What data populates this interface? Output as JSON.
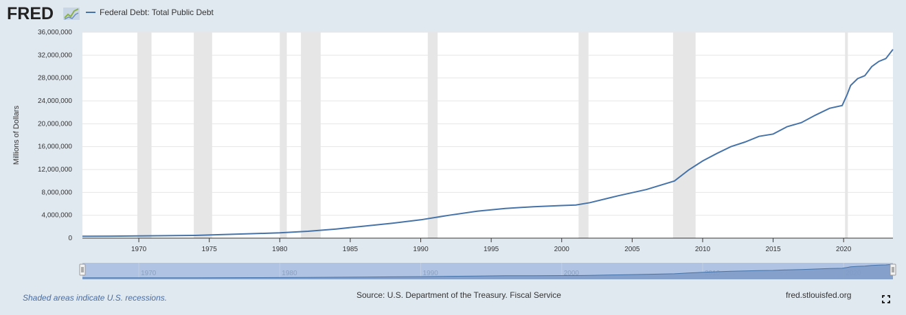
{
  "logo": {
    "text": "FRED"
  },
  "legend": {
    "label": "Federal Debt: Total Public Debt",
    "color": "#4572a7"
  },
  "footer": {
    "note": "Shaded areas indicate U.S. recessions.",
    "source": "Source: U.S. Department of the Treasury. Fiscal Service",
    "url": "fred.stlouisfed.org"
  },
  "icons": {
    "fullscreen": "fullscreen-icon"
  },
  "colors": {
    "background": "#e1e9f0",
    "plot": "#ffffff",
    "recession": "#e6e6e6",
    "line": "#4572a7",
    "navigator": "#a8bde0"
  },
  "chart_data": {
    "type": "line",
    "title": "",
    "xlabel": "",
    "ylabel": "Millions of Dollars",
    "xlim": [
      1966,
      2023.5
    ],
    "ylim": [
      0,
      36000000
    ],
    "grid": true,
    "legend_position": "top-left",
    "y_ticks": [
      "0",
      "4,000,000",
      "8,000,000",
      "12,000,000",
      "16,000,000",
      "20,000,000",
      "24,000,000",
      "28,000,000",
      "32,000,000",
      "36,000,000"
    ],
    "y_tick_values": [
      0,
      4000000,
      8000000,
      12000000,
      16000000,
      20000000,
      24000000,
      28000000,
      32000000,
      36000000
    ],
    "x_ticks": [
      "1970",
      "1975",
      "1980",
      "1985",
      "1990",
      "1995",
      "2000",
      "2005",
      "2010",
      "2015",
      "2020"
    ],
    "x_tick_values": [
      1970,
      1975,
      1980,
      1985,
      1990,
      1995,
      2000,
      2005,
      2010,
      2015,
      2020
    ],
    "navigator_ticks": [
      "1970",
      "1980",
      "1990",
      "2000",
      "2010",
      "2020"
    ],
    "navigator_tick_values": [
      1970,
      1980,
      1990,
      2000,
      2010,
      2020
    ],
    "recessions": [
      [
        1969.9,
        1970.9
      ],
      [
        1973.9,
        1975.2
      ],
      [
        1980.0,
        1980.5
      ],
      [
        1981.5,
        1982.9
      ],
      [
        1990.5,
        1991.2
      ],
      [
        2001.2,
        2001.9
      ],
      [
        2007.9,
        2009.5
      ],
      [
        2020.1,
        2020.3
      ]
    ],
    "series": [
      {
        "name": "Federal Debt: Total Public Debt",
        "x": [
          1966,
          1968,
          1970,
          1972,
          1974,
          1976,
          1978,
          1980,
          1982,
          1984,
          1986,
          1988,
          1990,
          1992,
          1994,
          1996,
          1998,
          2000,
          2001,
          2002,
          2004,
          2006,
          2008,
          2009,
          2010,
          2011,
          2012,
          2013,
          2014,
          2015,
          2016,
          2017,
          2018,
          2019,
          2019.9,
          2020.25,
          2020.5,
          2021,
          2021.5,
          2022,
          2022.5,
          2023,
          2023.5
        ],
        "values": [
          320000,
          350000,
          380000,
          430000,
          480000,
          630000,
          780000,
          930000,
          1200000,
          1600000,
          2100000,
          2600000,
          3200000,
          4000000,
          4700000,
          5200000,
          5500000,
          5700000,
          5800000,
          6200000,
          7400000,
          8500000,
          10000000,
          11900000,
          13500000,
          14800000,
          16000000,
          16800000,
          17800000,
          18200000,
          19500000,
          20200000,
          21500000,
          22700000,
          23200000,
          25100000,
          26700000,
          27900000,
          28400000,
          30000000,
          30900000,
          31400000,
          33000000
        ]
      }
    ]
  }
}
